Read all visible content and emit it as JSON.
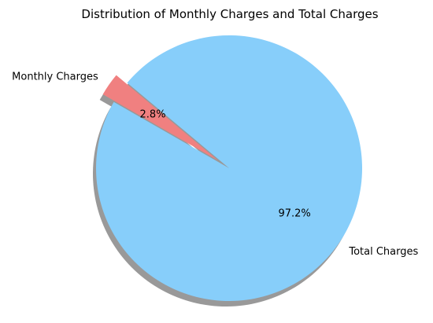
{
  "chart_data": {
    "type": "pie",
    "title": "Distribution of Monthly Charges and Total Charges",
    "slices": [
      {
        "label": "Monthly Charges",
        "value": 2.8,
        "display": "2.8%",
        "color": "#F08080",
        "exploded": true
      },
      {
        "label": "Total Charges",
        "value": 97.2,
        "display": "97.2%",
        "color": "#87CEFA",
        "exploded": false
      }
    ],
    "start_angle_deg": 140,
    "shadow": true
  }
}
